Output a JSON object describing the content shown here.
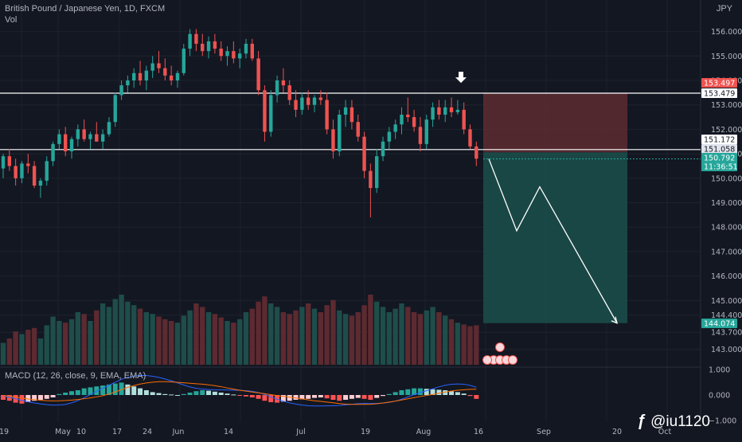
{
  "header": {
    "symbol_line": "British Pound / Japanese Yen, 1D, FXCM",
    "vol_label": "Vol",
    "currency": "JPY"
  },
  "macd": {
    "label": "MACD (12, 26, close, 9, EMA, EMA)",
    "ticks": [
      "1.000",
      "0.000",
      "−1.000"
    ]
  },
  "watermark": {
    "text": "@iu1120",
    "icon": "tradingview-logo-icon"
  },
  "colors": {
    "bg": "#131722",
    "up": "#26a69a",
    "down": "#ef5350",
    "up_vol": "#1e4d4a",
    "down_vol": "#5c2a30",
    "stop_zone": "#5a2a31",
    "target_zone": "#1b4c49",
    "level_line": "#ffffff",
    "tag_red": "#ef5350",
    "tag_green": "#26a69a",
    "tag_white": "#ffffff",
    "macd_line": "#2962ff",
    "signal_line": "#ff6d00"
  },
  "chart_data": {
    "type": "candlestick",
    "ylim": [
      142.6,
      157.0
    ],
    "y_ticks": [
      "156.000",
      "155.000",
      "154.000",
      "153.000",
      "152.000",
      "151.000",
      "150.000",
      "149.000",
      "148.000",
      "147.000",
      "146.000",
      "145.000",
      "144.400",
      "143.700",
      "143.000"
    ],
    "x_ticks": [
      "19",
      "May",
      "10",
      "17",
      "24",
      "Jun",
      "14",
      "Jul",
      "19",
      "Aug",
      "16",
      "Sep",
      "20",
      "Oct"
    ],
    "price_tags": [
      {
        "value": "153.497",
        "style": "red"
      },
      {
        "value": "153.479",
        "style": "white"
      },
      {
        "value": "151.172",
        "style": "white"
      },
      {
        "value": "151.058",
        "style": "gray"
      },
      {
        "value": "150.792",
        "style": "green"
      },
      {
        "value": "11:36:51",
        "style": "green"
      },
      {
        "value": "144.074",
        "style": "green"
      }
    ],
    "horizontal_levels": [
      153.479,
      151.172
    ],
    "position": {
      "entry": 151.058,
      "stop": 153.497,
      "target": 144.074,
      "direction": "short"
    },
    "projection_path": [
      150.79,
      147.85,
      149.65,
      144.074
    ],
    "signal_marker": {
      "type": "down-arrow",
      "price": 153.9
    },
    "ohlc": [
      [
        150.4,
        151.0,
        150.0,
        150.9
      ],
      [
        150.9,
        151.2,
        150.3,
        150.5
      ],
      [
        150.5,
        150.8,
        149.7,
        150.0
      ],
      [
        150.0,
        150.7,
        149.8,
        150.6
      ],
      [
        150.6,
        151.0,
        150.2,
        150.5
      ],
      [
        150.5,
        150.7,
        149.6,
        149.7
      ],
      [
        149.7,
        150.0,
        149.2,
        149.9
      ],
      [
        149.9,
        150.9,
        149.7,
        150.7
      ],
      [
        150.7,
        151.5,
        150.5,
        151.4
      ],
      [
        151.4,
        152.0,
        151.2,
        151.8
      ],
      [
        151.8,
        152.1,
        150.9,
        151.1
      ],
      [
        151.1,
        151.7,
        150.8,
        151.6
      ],
      [
        151.6,
        152.2,
        151.3,
        152.0
      ],
      [
        152.0,
        152.4,
        151.5,
        151.6
      ],
      [
        151.6,
        151.9,
        151.2,
        151.8
      ],
      [
        151.8,
        152.3,
        151.5,
        151.5
      ],
      [
        151.5,
        152.0,
        151.2,
        151.8
      ],
      [
        151.8,
        152.5,
        151.7,
        152.3
      ],
      [
        152.3,
        153.5,
        152.1,
        153.4
      ],
      [
        153.4,
        154.0,
        153.2,
        153.8
      ],
      [
        153.8,
        154.2,
        153.5,
        154.0
      ],
      [
        154.0,
        154.5,
        153.7,
        154.3
      ],
      [
        154.3,
        154.8,
        153.8,
        154.0
      ],
      [
        154.0,
        154.6,
        153.6,
        154.4
      ],
      [
        154.4,
        155.0,
        154.1,
        154.7
      ],
      [
        154.7,
        155.2,
        154.3,
        154.5
      ],
      [
        154.5,
        154.9,
        154.0,
        154.2
      ],
      [
        154.2,
        154.6,
        153.8,
        154.0
      ],
      [
        154.0,
        154.4,
        153.7,
        154.3
      ],
      [
        154.3,
        155.5,
        154.2,
        155.3
      ],
      [
        155.3,
        156.1,
        155.0,
        155.9
      ],
      [
        155.9,
        156.1,
        155.2,
        155.5
      ],
      [
        155.5,
        155.9,
        155.0,
        155.2
      ],
      [
        155.2,
        155.8,
        154.9,
        155.6
      ],
      [
        155.6,
        155.9,
        155.1,
        155.3
      ],
      [
        155.3,
        155.6,
        154.8,
        155.0
      ],
      [
        155.0,
        155.4,
        154.6,
        155.2
      ],
      [
        155.2,
        155.6,
        154.7,
        154.9
      ],
      [
        154.9,
        155.3,
        154.5,
        155.1
      ],
      [
        155.1,
        155.7,
        154.9,
        155.5
      ],
      [
        155.5,
        155.7,
        154.8,
        154.9
      ],
      [
        154.9,
        155.2,
        153.4,
        153.6
      ],
      [
        153.6,
        153.8,
        151.5,
        151.9
      ],
      [
        151.9,
        153.6,
        151.7,
        153.4
      ],
      [
        153.4,
        154.2,
        153.1,
        154.0
      ],
      [
        154.0,
        154.5,
        153.5,
        153.8
      ],
      [
        153.8,
        154.0,
        153.0,
        153.2
      ],
      [
        153.2,
        153.6,
        152.5,
        152.8
      ],
      [
        152.8,
        153.5,
        152.6,
        153.3
      ],
      [
        153.3,
        153.6,
        152.8,
        153.0
      ],
      [
        153.0,
        153.4,
        152.7,
        153.3
      ],
      [
        153.3,
        153.6,
        153.0,
        153.2
      ],
      [
        153.2,
        153.5,
        151.8,
        152.0
      ],
      [
        152.0,
        152.4,
        150.8,
        151.1
      ],
      [
        151.1,
        152.8,
        150.9,
        152.6
      ],
      [
        152.6,
        153.2,
        152.1,
        152.9
      ],
      [
        152.9,
        153.2,
        152.0,
        152.3
      ],
      [
        152.3,
        152.6,
        151.5,
        151.7
      ],
      [
        151.7,
        151.9,
        150.0,
        150.3
      ],
      [
        150.3,
        150.6,
        148.4,
        149.6
      ],
      [
        149.6,
        151.2,
        149.4,
        150.9
      ],
      [
        150.9,
        151.7,
        150.7,
        151.5
      ],
      [
        151.5,
        152.1,
        151.2,
        151.9
      ],
      [
        151.9,
        152.4,
        151.6,
        152.2
      ],
      [
        152.2,
        152.9,
        151.8,
        152.6
      ],
      [
        152.6,
        153.3,
        152.3,
        152.5
      ],
      [
        152.5,
        152.8,
        151.9,
        152.1
      ],
      [
        152.1,
        152.5,
        151.1,
        151.4
      ],
      [
        151.4,
        152.6,
        151.2,
        152.4
      ],
      [
        152.4,
        153.1,
        152.1,
        152.9
      ],
      [
        152.9,
        153.2,
        152.4,
        152.6
      ],
      [
        152.6,
        153.2,
        152.3,
        152.9
      ],
      [
        152.9,
        153.3,
        152.5,
        152.7
      ],
      [
        152.7,
        153.2,
        152.6,
        152.8
      ],
      [
        152.8,
        153.1,
        151.8,
        152.0
      ],
      [
        152.0,
        152.2,
        151.2,
        151.3
      ],
      [
        151.3,
        151.5,
        150.5,
        150.8
      ]
    ],
    "volume": [
      0.25,
      0.3,
      0.38,
      0.35,
      0.4,
      0.42,
      0.3,
      0.45,
      0.55,
      0.5,
      0.48,
      0.52,
      0.6,
      0.58,
      0.5,
      0.62,
      0.7,
      0.66,
      0.75,
      0.8,
      0.72,
      0.68,
      0.64,
      0.6,
      0.58,
      0.55,
      0.52,
      0.5,
      0.48,
      0.56,
      0.62,
      0.7,
      0.66,
      0.6,
      0.58,
      0.54,
      0.5,
      0.48,
      0.52,
      0.6,
      0.64,
      0.72,
      0.78,
      0.7,
      0.66,
      0.6,
      0.58,
      0.62,
      0.66,
      0.7,
      0.64,
      0.6,
      0.68,
      0.74,
      0.62,
      0.58,
      0.56,
      0.6,
      0.68,
      0.8,
      0.72,
      0.66,
      0.6,
      0.64,
      0.7,
      0.66,
      0.6,
      0.58,
      0.62,
      0.66,
      0.6,
      0.56,
      0.52,
      0.48,
      0.46,
      0.44,
      0.45
    ],
    "macd_hist": [
      -0.1,
      -0.12,
      -0.16,
      -0.18,
      -0.15,
      -0.12,
      -0.1,
      -0.08,
      -0.05,
      0.02,
      0.05,
      0.08,
      0.1,
      0.14,
      0.16,
      0.18,
      0.2,
      0.22,
      0.24,
      0.26,
      0.22,
      0.18,
      0.14,
      0.1,
      0.06,
      0.04,
      0.02,
      0.01,
      0.0,
      0.02,
      0.05,
      0.08,
      0.1,
      0.09,
      0.07,
      0.05,
      0.03,
      0.01,
      -0.01,
      -0.03,
      -0.05,
      -0.08,
      -0.12,
      -0.15,
      -0.16,
      -0.14,
      -0.12,
      -0.1,
      -0.09,
      -0.08,
      -0.06,
      -0.05,
      -0.07,
      -0.1,
      -0.12,
      -0.1,
      -0.08,
      -0.06,
      -0.08,
      -0.1,
      -0.06,
      -0.02,
      0.02,
      0.06,
      0.1,
      0.12,
      0.14,
      0.14,
      0.13,
      0.12,
      0.11,
      0.1,
      0.08,
      0.06,
      0.03,
      -0.02,
      -0.08
    ]
  }
}
